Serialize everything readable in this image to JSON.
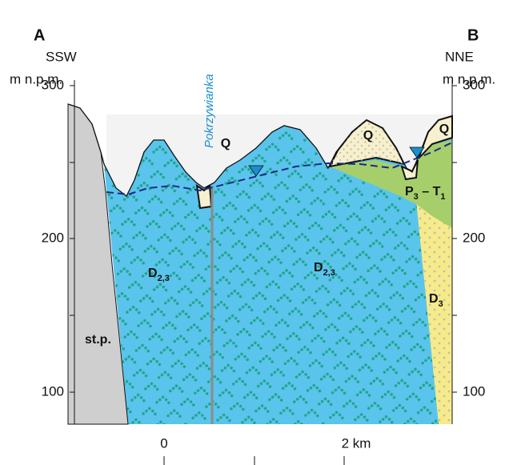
{
  "header": {
    "left_point": "A",
    "right_point": "B",
    "left_direction": "SSW",
    "right_direction": "NNE"
  },
  "left_axis": {
    "unit": "m n.p.m.",
    "ticks": [
      "300",
      "200",
      "100"
    ]
  },
  "right_axis": {
    "unit": "m n.p.m.",
    "ticks": [
      "300",
      "200",
      "100"
    ]
  },
  "x_axis": {
    "ticks": [
      "0",
      "2 km"
    ]
  },
  "labels": {
    "river": "Pokrzywianka",
    "quaternary": [
      "Q",
      "Q",
      "Q"
    ],
    "devonian_left": {
      "symbol": "D",
      "subscript": "2,3"
    },
    "devonian_right": {
      "symbol": "D",
      "subscript": "2,3"
    },
    "upper_devonian": {
      "symbol": "D",
      "subscript": "3"
    },
    "permo_triassic": {
      "parts": [
        "P",
        "3",
        " – ",
        "T",
        "1"
      ]
    },
    "basement": "st.p."
  }
}
